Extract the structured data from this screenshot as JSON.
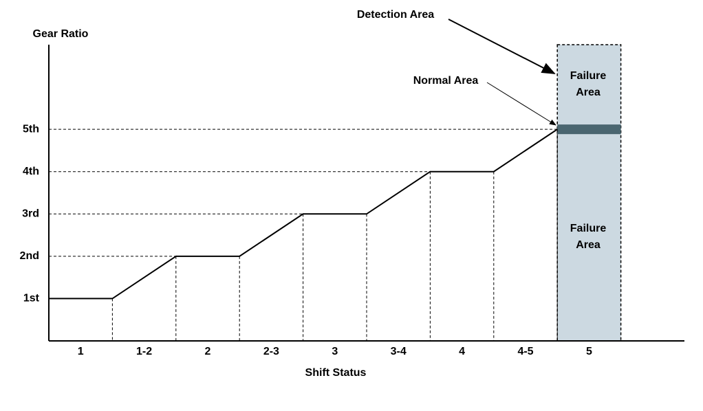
{
  "chart_data": {
    "type": "line",
    "y_label": "Gear Ratio",
    "x_label": "Shift Status",
    "categories": [
      "1",
      "1-2",
      "2",
      "2-3",
      "3",
      "3-4",
      "4",
      "4-5",
      "5"
    ],
    "xlim": [
      0,
      10
    ],
    "ylim": [
      0,
      7
    ],
    "yticks": [
      {
        "value": 1,
        "label": "1st"
      },
      {
        "value": 2,
        "label": "2nd"
      },
      {
        "value": 3,
        "label": "3rd"
      },
      {
        "value": 4,
        "label": "4th"
      },
      {
        "value": 5,
        "label": "5th"
      }
    ],
    "series": [
      {
        "x": [
          0,
          1,
          2,
          3,
          4,
          5,
          6,
          7,
          8
        ],
        "values": [
          1,
          1,
          2,
          2,
          3,
          3,
          4,
          4,
          5
        ],
        "color": "#000000"
      }
    ],
    "annotations": {
      "detection": "Detection Area",
      "normal": "Normal Area",
      "failure_upper": "Failure Area",
      "failure_lower": "Failure Area"
    }
  }
}
